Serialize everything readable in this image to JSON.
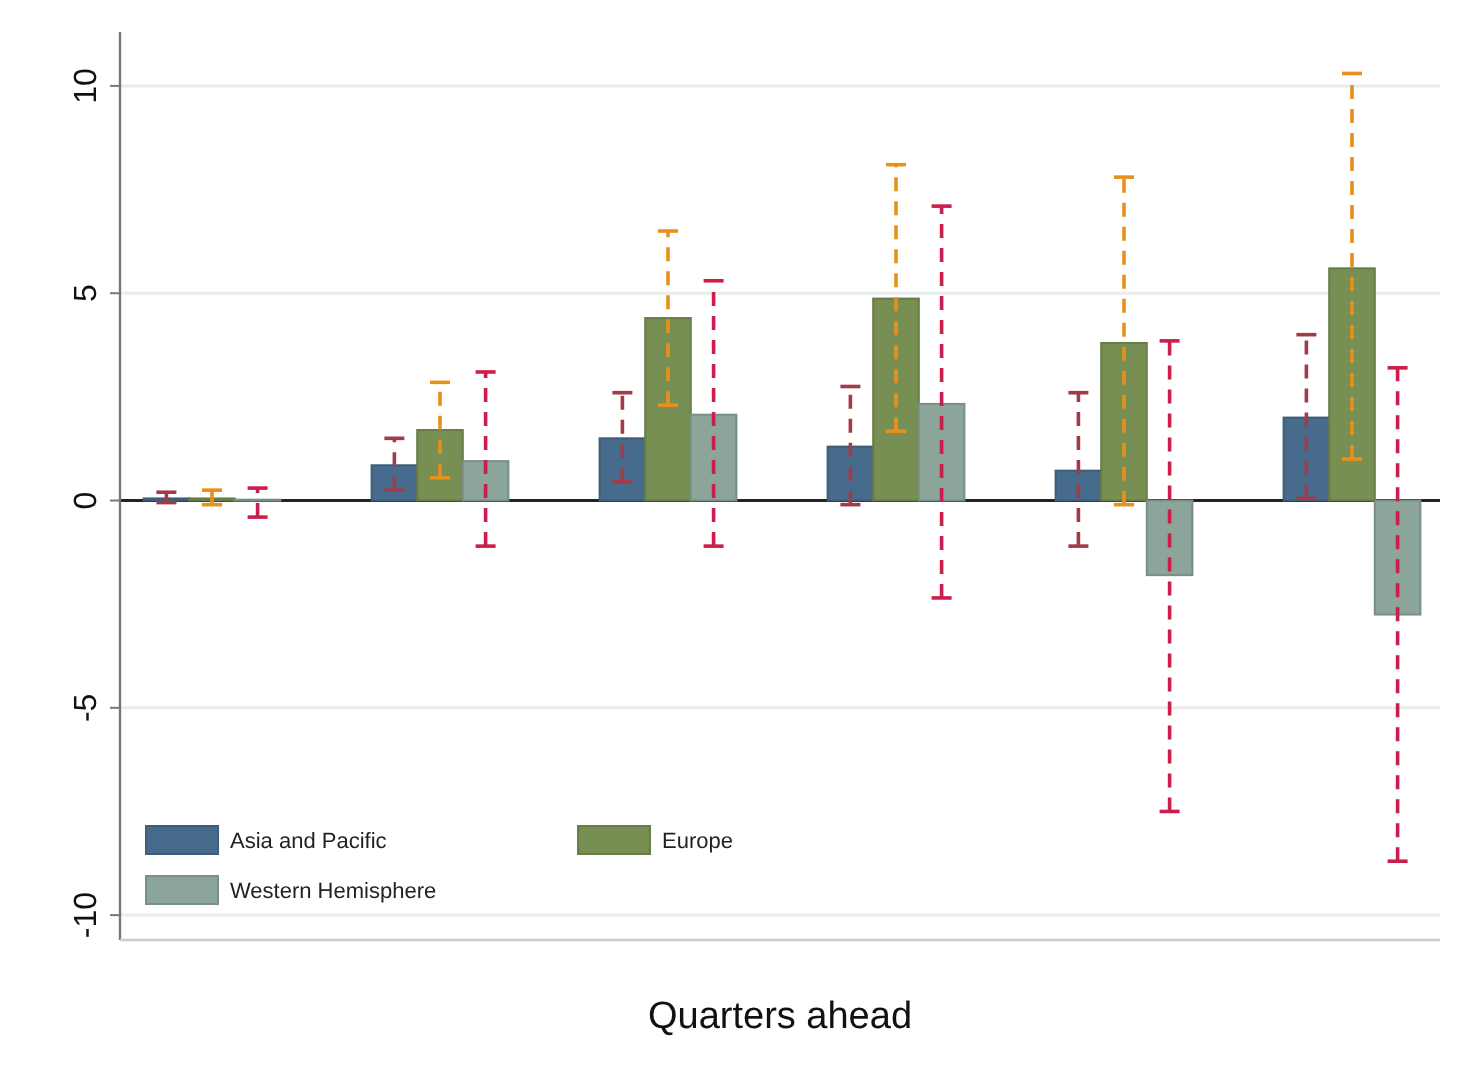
{
  "chart_data": {
    "type": "bar",
    "xlabel": "Quarters ahead",
    "categories": [
      null,
      null,
      null,
      null,
      null,
      null
    ],
    "series": [
      {
        "name": "Asia and Pacific",
        "color": "#476b8c",
        "values": [
          0.05,
          0.85,
          1.5,
          1.3,
          0.72,
          2.0
        ],
        "errors": [
          [
            -0.05,
            0.2
          ],
          [
            0.25,
            1.5
          ],
          [
            0.45,
            2.6
          ],
          [
            -0.1,
            2.75
          ],
          [
            -1.1,
            2.6
          ],
          [
            0.05,
            4.0
          ]
        ]
      },
      {
        "name": "Europe",
        "color": "#778f52",
        "values": [
          0.05,
          1.7,
          4.4,
          4.87,
          3.8,
          5.6
        ],
        "errors": [
          [
            -0.1,
            0.25
          ],
          [
            0.55,
            2.85
          ],
          [
            2.3,
            6.5
          ],
          [
            1.67,
            8.1
          ],
          [
            -0.1,
            7.8
          ],
          [
            1.0,
            10.3
          ]
        ]
      },
      {
        "name": "Western Hemisphere",
        "color": "#8ba59a",
        "values": [
          0.02,
          0.95,
          2.07,
          2.33,
          -1.8,
          -2.75
        ],
        "errors": [
          [
            -0.4,
            0.3
          ],
          [
            -1.1,
            3.1
          ],
          [
            -1.1,
            5.3
          ],
          [
            -2.35,
            7.1
          ],
          [
            -7.5,
            3.85
          ],
          [
            -8.7,
            3.2
          ]
        ]
      }
    ],
    "ylim": [
      -10.6,
      11.3
    ],
    "yticks": [
      -10,
      -5,
      0,
      5,
      10
    ],
    "grid": "y",
    "legend": "bottom left"
  }
}
